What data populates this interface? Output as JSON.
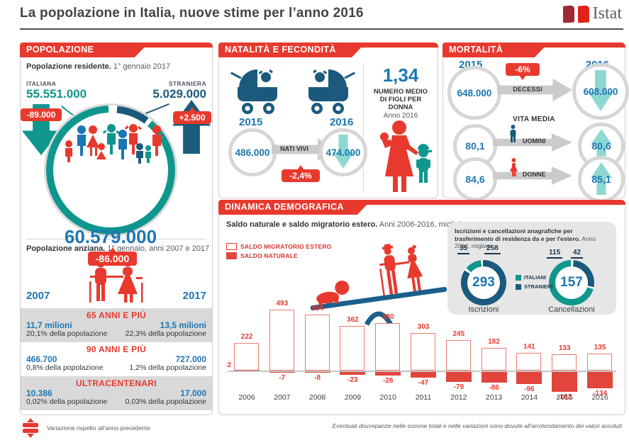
{
  "page": {
    "title": "La popolazione in Italia, nuove stime per l’anno 2016",
    "logo_text": "Istat",
    "footer_left": "Variazione rispetto all'anno precedente",
    "footer_right": "Eventuali discrepanze nelle somme totali e nelle variazioni sono dovute all'arrotondamento dei valori assoluti"
  },
  "popolazione": {
    "header": "POPOLAZIONE",
    "subtitle_bold": "Popolazione residente.",
    "subtitle_rest": " 1° gennaio 2017",
    "italiana_label": "ITALIANA",
    "italiana_value": "55.551.000",
    "italiana_change": "-89.000",
    "straniera_label": "STRANIERA",
    "straniera_value": "5.029.000",
    "straniera_change": "+2.500",
    "total_value": "60.579.000",
    "total_change": "-86.000",
    "anziana_bold": "Popolazione anziana.",
    "anziana_rest": " 1° gennaio, anni 2007 e 2017",
    "year_left": "2007",
    "year_right": "2017",
    "bands": [
      {
        "title": "65 ANNI E PIÙ",
        "left_value": "11,7 milioni",
        "left_pct": "20,1% della popolazione",
        "right_value": "13,5 milioni",
        "right_pct": "22,3% della popolazione",
        "shaded": true
      },
      {
        "title": "90 ANNI E PIÙ",
        "left_value": "466.700",
        "left_pct": "0,8% della popolazione",
        "right_value": "727.000",
        "right_pct": "1,2% della popolazione",
        "shaded": false
      },
      {
        "title": "ULTRACENTENARI",
        "left_value": "10.386",
        "left_pct": "0,02% della popolazione",
        "right_value": "17.000",
        "right_pct": "0,03% della popolazione",
        "shaded": true
      }
    ]
  },
  "natalita": {
    "header": "NATALITÀ E FECONDITÀ",
    "fertility_value": "1,34",
    "fertility_label1": "NUMERO MEDIO",
    "fertility_label2": "DI FIGLI PER DONNA",
    "fertility_sub": "Anno 2016",
    "year_2015": "2015",
    "year_2016": "2016",
    "value_2015": "486.000",
    "arrow_label": "NATI VIVI",
    "change": "-2,4%",
    "value_2016": "474.000"
  },
  "mortalita": {
    "header": "MORTALITÀ",
    "year_2015": "2015",
    "year_2016": "2016",
    "decessi_2015": "648.000",
    "decessi_change": "-6%",
    "decessi_label": "DECESSI",
    "decessi_2016": "608.000",
    "vita_media_label": "VITA MEDIA",
    "rows": [
      {
        "label": "UOMINI",
        "v2015": "80,1",
        "v2016": "80,6",
        "icon": "man"
      },
      {
        "label": "DONNE",
        "v2015": "84,6",
        "v2016": "85,1",
        "icon": "woman"
      }
    ]
  },
  "dinamica": {
    "header": "DINAMICA DEMOGRAFICA",
    "subtitle_bold": "Saldo naturale e saldo migratorio estero.",
    "subtitle_rest": " Anni 2006-2016, migliaia",
    "legend": [
      {
        "label": "SALDO MIGRATORIO ESTERO",
        "style": "outline"
      },
      {
        "label": "SALDO NATURALE",
        "style": "filled"
      }
    ],
    "migration_box": {
      "title_bold": "Iscrizioni e cancellazioni anagrafiche per trasferimento di residenza da e per l'estero.",
      "title_rest": " Anno 2016, migliaia",
      "legend": [
        {
          "label": "ITALIANI",
          "color": "#0f968d"
        },
        {
          "label": "STRANIERI",
          "color": "#1b5a7d"
        }
      ],
      "donuts": [
        {
          "caption": "Iscrizioni",
          "total": 293,
          "italiani": 35,
          "stranieri": 258
        },
        {
          "caption": "Cancellazioni",
          "total": 157,
          "italiani": 115,
          "stranieri": 42
        }
      ]
    }
  },
  "chart_data": {
    "type": "bar",
    "title": "Saldo naturale e saldo migratorio estero",
    "subtitle": "Anni 2006-2016, migliaia",
    "categories": [
      "2006",
      "2007",
      "2008",
      "2009",
      "2010",
      "2011",
      "2012",
      "2013",
      "2014",
      "2015",
      "2016"
    ],
    "series": [
      {
        "name": "SALDO MIGRATORIO ESTERO",
        "values": [
          222,
          493,
          454,
          362,
          380,
          303,
          245,
          182,
          141,
          133,
          135
        ]
      },
      {
        "name": "SALDO NATURALE",
        "values": [
          2,
          -7,
          -8,
          -23,
          -26,
          -47,
          -79,
          -86,
          -96,
          -162,
          -134
        ]
      }
    ],
    "xlabel": "",
    "ylabel": "migliaia",
    "ylim": [
      -180,
      520
    ],
    "grid": false,
    "legend_position": "top-left"
  },
  "colors": {
    "red": "#e8392e",
    "bar_red": "#e2453c",
    "bar_outline": "#ee7c6d",
    "teal": "#0f968d",
    "teal_light": "#8ed8d2",
    "navy": "#1b5a7d",
    "blue": "#1d76b4",
    "gray_band": "#d9d9d9"
  }
}
